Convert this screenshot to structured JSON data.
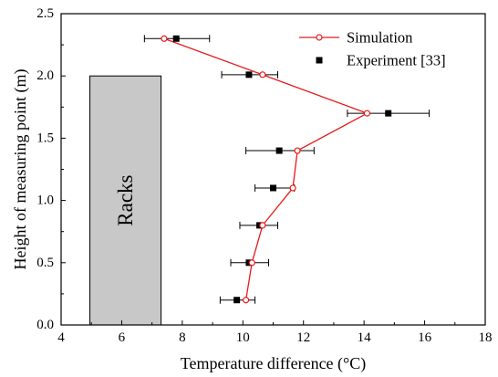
{
  "chart_data": {
    "type": "scatter",
    "xlabel": "Temperature difference (°C)",
    "ylabel": "Height of measuring point (m)",
    "xlim": [
      4,
      18
    ],
    "ylim": [
      0,
      2.5
    ],
    "xticks": [
      "4",
      "6",
      "8",
      "10",
      "12",
      "14",
      "16",
      "18"
    ],
    "yticks": [
      "0.0",
      "0.5",
      "1.0",
      "1.5",
      "2.0",
      "2.5"
    ],
    "grid": false,
    "legend_position": "top-right",
    "series": [
      {
        "name": "Simulation",
        "style": "line-open-circle",
        "color": "#e8191b",
        "points": [
          {
            "x": 10.1,
            "y": 0.2
          },
          {
            "x": 10.3,
            "y": 0.5
          },
          {
            "x": 10.65,
            "y": 0.8
          },
          {
            "x": 11.65,
            "y": 1.1
          },
          {
            "x": 11.8,
            "y": 1.4
          },
          {
            "x": 14.1,
            "y": 1.7
          },
          {
            "x": 10.65,
            "y": 2.01
          },
          {
            "x": 7.4,
            "y": 2.3
          }
        ]
      },
      {
        "name": "Experiment [33]",
        "style": "filled-square-errorbar",
        "color": "#000000",
        "points": [
          {
            "x": 9.8,
            "y": 0.2,
            "err_lo": 9.25,
            "err_hi": 10.4
          },
          {
            "x": 10.2,
            "y": 0.5,
            "err_lo": 9.6,
            "err_hi": 10.85
          },
          {
            "x": 10.55,
            "y": 0.8,
            "err_lo": 9.9,
            "err_hi": 11.15
          },
          {
            "x": 11.0,
            "y": 1.1,
            "err_lo": 10.4,
            "err_hi": 11.7
          },
          {
            "x": 11.2,
            "y": 1.4,
            "err_lo": 10.1,
            "err_hi": 12.35
          },
          {
            "x": 14.8,
            "y": 1.7,
            "err_lo": 13.45,
            "err_hi": 16.15
          },
          {
            "x": 10.2,
            "y": 2.01,
            "err_lo": 9.3,
            "err_hi": 11.15
          },
          {
            "x": 7.8,
            "y": 2.3,
            "err_lo": 6.75,
            "err_hi": 8.9
          }
        ]
      }
    ],
    "annotation": {
      "label": "Racks",
      "fill": "#c8c8c8",
      "x_range": [
        4.95,
        7.3
      ],
      "y_range": [
        0,
        2.0
      ]
    }
  }
}
